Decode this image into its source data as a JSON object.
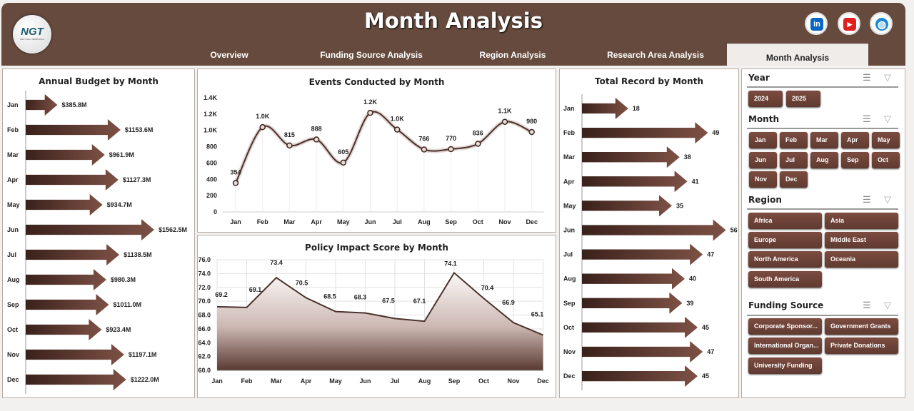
{
  "header": {
    "title": "Month Analysis",
    "logo_text": "NGT",
    "logo_sub": "NEXT GEN TEMPLATES",
    "tabs": [
      {
        "label": "Overview"
      },
      {
        "label": "Funding Source Analysis"
      },
      {
        "label": "Region Analysis"
      },
      {
        "label": "Research Area Analysis"
      },
      {
        "label": "Month Analysis",
        "active": true
      }
    ],
    "social": [
      {
        "icon": "linkedin-icon",
        "text": "in",
        "color": "#0a66c2"
      },
      {
        "icon": "youtube-icon",
        "text": "▶",
        "color": "#e01e1e"
      },
      {
        "icon": "globe-icon",
        "text": "◍",
        "color": "#1a8ad6"
      }
    ]
  },
  "colors": {
    "brand": "#654a3d",
    "accent": "#5f3a31"
  },
  "chart_data": [
    {
      "type": "bar",
      "orientation": "horizontal",
      "title": "Annual Budget by Month",
      "categories": [
        "Jan",
        "Feb",
        "Mar",
        "Apr",
        "May",
        "Jun",
        "Jul",
        "Aug",
        "Sep",
        "Oct",
        "Nov",
        "Dec"
      ],
      "values": [
        385.8,
        1153.6,
        961.9,
        1127.3,
        934.7,
        1562.5,
        1138.5,
        980.3,
        1011.0,
        923.4,
        1197.1,
        1222.0
      ],
      "labels": [
        "$385.8M",
        "$1153.6M",
        "$961.9M",
        "$1127.3M",
        "$934.7M",
        "$1562.5M",
        "$1138.5M",
        "$980.3M",
        "$1011.0M",
        "$923.4M",
        "$1197.1M",
        "$1222.0M"
      ],
      "unit": "$M"
    },
    {
      "type": "line",
      "smooth": true,
      "title": "Events Conducted by Month",
      "categories": [
        "Jan",
        "Feb",
        "Mar",
        "Apr",
        "May",
        "Jun",
        "Jul",
        "Aug",
        "Sep",
        "Oct",
        "Nov",
        "Dec"
      ],
      "values": [
        354,
        1040,
        815,
        888,
        605,
        1215,
        1010,
        766,
        770,
        836,
        1105,
        980
      ],
      "labels": [
        "354",
        "1.0K",
        "815",
        "888",
        "605",
        "1.2K",
        "1.0K",
        "766",
        "770",
        "836",
        "1.1K",
        "980"
      ],
      "ylim": [
        0,
        1400
      ],
      "yticks": [
        "0",
        "200",
        "400",
        "600",
        "800",
        "1.0K",
        "1.2K",
        "1.4K"
      ],
      "grid": "vertical"
    },
    {
      "type": "area",
      "title": "Policy Impact Score by Month",
      "categories": [
        "Jan",
        "Feb",
        "Mar",
        "Apr",
        "May",
        "Jun",
        "Jul",
        "Aug",
        "Sep",
        "Oct",
        "Nov",
        "Dec"
      ],
      "values": [
        69.2,
        69.1,
        73.4,
        70.5,
        68.5,
        68.3,
        67.5,
        67.1,
        74.1,
        70.4,
        66.9,
        65.1
      ],
      "ylim": [
        60,
        76
      ],
      "yticks": [
        "60.0",
        "62.0",
        "64.0",
        "66.0",
        "68.0",
        "70.0",
        "72.0",
        "74.0",
        "76.0"
      ],
      "grid": "both"
    },
    {
      "type": "bar",
      "orientation": "horizontal",
      "title": "Total Record by Month",
      "categories": [
        "Jan",
        "Feb",
        "Mar",
        "Apr",
        "May",
        "Jun",
        "Jul",
        "Aug",
        "Sep",
        "Oct",
        "Nov",
        "Dec"
      ],
      "values": [
        18,
        49,
        38,
        41,
        35,
        56,
        47,
        40,
        39,
        45,
        47,
        45
      ]
    }
  ],
  "slicers": [
    {
      "title": "Year",
      "items": [
        "2024",
        "2025"
      ]
    },
    {
      "title": "Month",
      "items": [
        "Jan",
        "Feb",
        "Mar",
        "Apr",
        "May",
        "Jun",
        "Jul",
        "Aug",
        "Sep",
        "Oct",
        "Nov",
        "Dec"
      ]
    },
    {
      "title": "Region",
      "items": [
        "Africa",
        "Asia",
        "Europe",
        "Middle East",
        "North America",
        "Oceania",
        "South America"
      ]
    },
    {
      "title": "Funding Source",
      "items": [
        "Corporate Sponsor...",
        "Government Grants",
        "International Organ...",
        "Private Donations",
        "University Funding"
      ]
    }
  ]
}
